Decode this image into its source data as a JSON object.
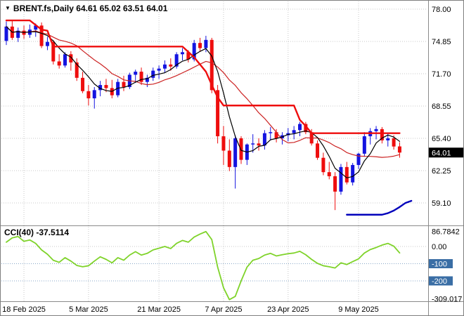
{
  "window": {
    "title": "BRENT.fs,Daily 64.61 65.02 63.51 64.01",
    "dropdown_icon": "▼",
    "symbol": "BRENT.fs",
    "timeframe": "Daily"
  },
  "indicator": {
    "label": "CCI(40) -37.5114"
  },
  "colors": {
    "bull": "#1414e0",
    "bear": "#ee0d0d",
    "ma_fast": "#000000",
    "ma_slow": "#cc2222",
    "stop_upper": "#ee0d0d",
    "stop_lower": "#0000bb",
    "cci_line": "#7fd32a",
    "grid": "#c8c8c8",
    "level_badge": "#3a6ea5",
    "price_badge_bg": "#000000",
    "separator": "#8a8a8a",
    "axis_text": "#000000"
  },
  "chart_data": [
    {
      "type": "candlestick",
      "title": "BRENT.fs Daily",
      "last_ohlc": {
        "open": 64.61,
        "high": 65.02,
        "low": 63.51,
        "close": 64.01
      },
      "y_axis": {
        "ticks": [
          "78.00",
          "74.85",
          "71.70",
          "68.55",
          "65.40",
          "62.25",
          "59.10"
        ],
        "tick_values": [
          78.0,
          74.85,
          71.7,
          68.55,
          65.4,
          62.25,
          59.1
        ],
        "range": [
          57.05,
          78.27
        ],
        "current": 64.01,
        "current_label": "64.01"
      },
      "x_axis": {
        "tick_indices": [
          3,
          14,
          26,
          37,
          48,
          60
        ],
        "tick_labels": [
          "18 Feb 2025",
          "5 Mar 2025",
          "21 Mar 2025",
          "7 Apr 2025",
          "23 Apr 2025",
          "9 May 2025"
        ]
      },
      "candles": [
        [
          74.9,
          76.8,
          74.5,
          76.3
        ],
        [
          76.3,
          76.9,
          75.0,
          75.2
        ],
        [
          75.2,
          76.2,
          74.8,
          75.9
        ],
        [
          75.9,
          76.4,
          75.1,
          75.5
        ],
        [
          75.5,
          76.5,
          75.2,
          76.0
        ],
        [
          76.0,
          76.6,
          75.3,
          76.4
        ],
        [
          76.4,
          76.7,
          74.2,
          74.4
        ],
        [
          74.4,
          75.3,
          74.0,
          74.8
        ],
        [
          74.8,
          75.0,
          72.6,
          72.9
        ],
        [
          72.9,
          73.6,
          72.2,
          72.5
        ],
        [
          72.5,
          73.8,
          72.3,
          73.6
        ],
        [
          73.6,
          73.9,
          72.0,
          72.8
        ],
        [
          72.8,
          73.2,
          71.0,
          71.3
        ],
        [
          71.3,
          71.9,
          69.8,
          70.0
        ],
        [
          70.0,
          70.6,
          68.6,
          69.3
        ],
        [
          69.3,
          70.4,
          68.3,
          70.1
        ],
        [
          70.1,
          71.0,
          69.5,
          70.6
        ],
        [
          70.6,
          71.2,
          69.9,
          70.3
        ],
        [
          70.3,
          71.1,
          69.3,
          69.6
        ],
        [
          69.6,
          71.2,
          69.4,
          70.9
        ],
        [
          70.9,
          71.5,
          70.0,
          70.4
        ],
        [
          70.4,
          71.8,
          70.2,
          71.6
        ],
        [
          71.6,
          72.1,
          70.8,
          71.9
        ],
        [
          71.9,
          72.3,
          70.6,
          70.9
        ],
        [
          70.9,
          71.6,
          70.4,
          71.3
        ],
        [
          71.3,
          72.3,
          71.0,
          72.0
        ],
        [
          72.0,
          72.5,
          71.2,
          72.2
        ],
        [
          72.2,
          73.0,
          71.8,
          72.6
        ],
        [
          72.6,
          73.2,
          72.0,
          72.4
        ],
        [
          72.4,
          73.8,
          72.2,
          73.6
        ],
        [
          73.6,
          74.2,
          73.0,
          73.8
        ],
        [
          73.8,
          74.0,
          72.8,
          73.1
        ],
        [
          73.1,
          75.0,
          72.9,
          74.7
        ],
        [
          74.7,
          75.2,
          73.9,
          74.2
        ],
        [
          74.2,
          75.4,
          73.8,
          75.0
        ],
        [
          75.0,
          75.2,
          69.8,
          70.1
        ],
        [
          70.1,
          70.6,
          64.9,
          65.6
        ],
        [
          65.6,
          66.6,
          62.8,
          64.2
        ],
        [
          64.2,
          65.3,
          62.2,
          62.6
        ],
        [
          62.6,
          65.7,
          60.5,
          65.4
        ],
        [
          65.4,
          65.6,
          62.9,
          63.3
        ],
        [
          63.3,
          64.9,
          62.8,
          64.8
        ],
        [
          64.8,
          65.8,
          64.0,
          64.9
        ],
        [
          64.9,
          65.4,
          64.2,
          64.7
        ],
        [
          64.7,
          66.2,
          64.3,
          65.9
        ],
        [
          65.9,
          66.5,
          65.2,
          66.0
        ],
        [
          66.0,
          66.3,
          65.0,
          65.4
        ],
        [
          65.4,
          66.0,
          64.8,
          65.7
        ],
        [
          65.7,
          66.4,
          65.1,
          65.9
        ],
        [
          65.9,
          66.6,
          65.3,
          66.2
        ],
        [
          66.2,
          67.0,
          65.6,
          66.8
        ],
        [
          66.8,
          67.0,
          65.8,
          66.0
        ],
        [
          66.0,
          66.3,
          64.7,
          64.9
        ],
        [
          64.9,
          65.2,
          63.3,
          63.5
        ],
        [
          63.5,
          64.0,
          61.8,
          62.1
        ],
        [
          62.1,
          63.1,
          61.4,
          61.7
        ],
        [
          61.7,
          62.1,
          58.4,
          60.2
        ],
        [
          60.2,
          62.9,
          59.9,
          62.6
        ],
        [
          62.6,
          63.1,
          60.9,
          61.1
        ],
        [
          61.1,
          63.0,
          60.8,
          62.8
        ],
        [
          62.8,
          64.0,
          62.4,
          63.9
        ],
        [
          63.9,
          66.0,
          63.6,
          65.6
        ],
        [
          65.6,
          66.4,
          64.8,
          66.1
        ],
        [
          66.1,
          66.6,
          65.3,
          66.3
        ],
        [
          66.3,
          66.5,
          64.9,
          65.2
        ],
        [
          65.2,
          65.9,
          64.6,
          65.4
        ],
        [
          65.4,
          65.7,
          64.3,
          64.6
        ],
        [
          64.61,
          65.02,
          63.51,
          64.01
        ]
      ],
      "overlays": {
        "ma_fast": {
          "kind": "sma",
          "period": 5
        },
        "ma_slow": {
          "kind": "sma",
          "period": 13
        },
        "stop_upper": {
          "points": [
            [
              0,
              76.9
            ],
            [
              4,
              76.9
            ],
            [
              6,
              76.0
            ],
            [
              7,
              75.9
            ],
            [
              8,
              74.35
            ],
            [
              30,
              74.35
            ],
            [
              32,
              73.3
            ],
            [
              34,
              71.9
            ],
            [
              35,
              70.6
            ],
            [
              36,
              69.4
            ],
            [
              37,
              68.6
            ],
            [
              49,
              68.6
            ],
            [
              50,
              67.2
            ],
            [
              51,
              66.6
            ],
            [
              52,
              65.9
            ],
            [
              67,
              65.9
            ]
          ]
        },
        "stop_lower": {
          "points": [
            [
              58,
              57.95
            ],
            [
              64,
              57.95
            ],
            [
              65,
              58.1
            ],
            [
              66,
              58.35
            ],
            [
              67,
              58.7
            ],
            [
              68,
              59.1
            ],
            [
              69,
              59.3
            ]
          ]
        }
      }
    },
    {
      "type": "line",
      "name": "CCI(40)",
      "current_value": -37.5114,
      "values": [
        25,
        50,
        58,
        30,
        38,
        18,
        -20,
        -45,
        -80,
        -92,
        -65,
        -85,
        -110,
        -118,
        -112,
        -85,
        -60,
        -75,
        -95,
        -65,
        -80,
        -50,
        -30,
        -50,
        -40,
        -20,
        -10,
        0,
        -12,
        18,
        35,
        25,
        55,
        72,
        86.7842,
        40,
        -120,
        -240,
        -309.017,
        -290,
        -200,
        -120,
        -80,
        -70,
        -50,
        -40,
        -55,
        -48,
        -42,
        -38,
        -28,
        -48,
        -75,
        -98,
        -112,
        -118,
        -125,
        -95,
        -105,
        -88,
        -72,
        -38,
        -18,
        -6,
        8,
        18,
        2,
        -37.5114
      ],
      "y_axis": {
        "max_value": 86.7842,
        "max_label": "86.7842",
        "zero_label": "0.00",
        "min_value": -309.017,
        "min_label": "-309.017",
        "range": [
          -320,
          115
        ]
      },
      "levels": [
        {
          "value": -100,
          "label": "-100"
        },
        {
          "value": -200,
          "label": "-200"
        }
      ]
    }
  ]
}
